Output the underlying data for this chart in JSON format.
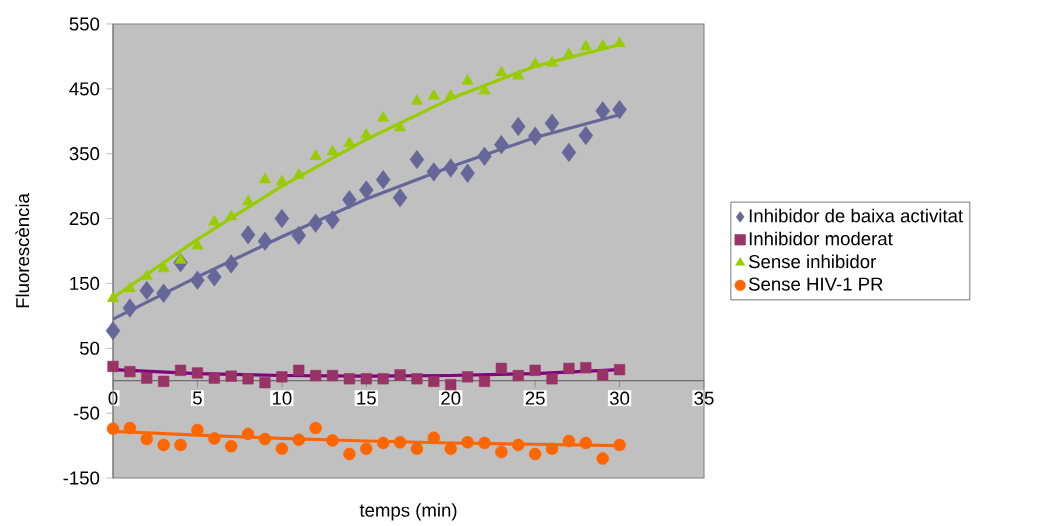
{
  "chart_data": {
    "type": "scatter",
    "xlabel": "temps (min)",
    "ylabel": "Fluorescència",
    "xlim": [
      0,
      35
    ],
    "xticks": [
      0,
      5,
      10,
      15,
      20,
      25,
      30,
      35
    ],
    "ylim": [
      -150,
      550
    ],
    "yticks": [
      -150,
      -50,
      50,
      150,
      250,
      350,
      450,
      550
    ],
    "grid": false,
    "legend": "right",
    "series": [
      {
        "type": "line",
        "color": "#666699",
        "marker": "none",
        "x": [
          0,
          5,
          10,
          15,
          20,
          25,
          30
        ],
        "values": [
          95,
          160,
          222,
          280,
          330,
          375,
          410
        ]
      },
      {
        "type": "line",
        "color": "#800080",
        "marker": "none",
        "x": [
          0,
          5,
          10,
          15,
          20,
          25,
          30
        ],
        "values": [
          17,
          11,
          8,
          7,
          8,
          11,
          17
        ]
      },
      {
        "type": "line",
        "color": "#99cc00",
        "marker": "none",
        "x": [
          0,
          5,
          10,
          15,
          20,
          25,
          30
        ],
        "values": [
          128,
          218,
          300,
          372,
          435,
          485,
          518
        ]
      },
      {
        "type": "line",
        "color": "#ff6600",
        "marker": "none",
        "x": [
          0,
          5,
          10,
          15,
          20,
          25,
          30
        ],
        "values": [
          -78,
          -84,
          -89,
          -93,
          -96,
          -98,
          -100
        ]
      },
      {
        "name": "Inhibidor de baixa activitat",
        "color": "#666699",
        "marker": "diamond",
        "x": [
          0,
          1,
          2,
          3,
          4,
          5,
          6,
          7,
          8,
          9,
          10,
          11,
          12,
          13,
          14,
          15,
          16,
          17,
          18,
          19,
          20,
          21,
          22,
          23,
          24,
          25,
          26,
          27,
          28,
          29,
          30
        ],
        "values": [
          77,
          112,
          139,
          135,
          182,
          155,
          160,
          180,
          225,
          215,
          250,
          224,
          243,
          248,
          279,
          294,
          310,
          282,
          341,
          322,
          328,
          320,
          346,
          364,
          392,
          377,
          397,
          352,
          378,
          416,
          418
        ]
      },
      {
        "name": "Inhibidor moderat",
        "color": "#993366",
        "marker": "square",
        "x": [
          0,
          1,
          2,
          3,
          4,
          5,
          6,
          7,
          8,
          9,
          10,
          11,
          12,
          13,
          14,
          15,
          16,
          17,
          18,
          19,
          20,
          21,
          22,
          23,
          24,
          25,
          26,
          27,
          28,
          29,
          30
        ],
        "values": [
          22,
          14,
          4,
          -1,
          16,
          12,
          4,
          7,
          3,
          -3,
          6,
          16,
          8,
          8,
          3,
          3,
          3,
          9,
          3,
          -1,
          -6,
          6,
          -1,
          19,
          8,
          16,
          3,
          19,
          20,
          9,
          17
        ]
      },
      {
        "name": "Sense inhibidor",
        "color": "#99cc00",
        "marker": "triangle",
        "x": [
          0,
          1,
          2,
          3,
          4,
          5,
          6,
          7,
          8,
          9,
          10,
          11,
          12,
          13,
          14,
          15,
          16,
          17,
          18,
          19,
          20,
          21,
          22,
          23,
          24,
          25,
          26,
          27,
          28,
          29,
          30
        ],
        "values": [
          127,
          142,
          161,
          173,
          186,
          208,
          245,
          253,
          276,
          310,
          307,
          317,
          346,
          353,
          366,
          379,
          405,
          390,
          431,
          439,
          439,
          462,
          447,
          475,
          470,
          488,
          490,
          503,
          515,
          516,
          520
        ]
      },
      {
        "name": "Sense HIV-1 PR",
        "color": "#ff6600",
        "marker": "circle",
        "x": [
          0,
          1,
          2,
          3,
          4,
          5,
          6,
          7,
          8,
          9,
          10,
          11,
          12,
          13,
          14,
          15,
          16,
          17,
          18,
          19,
          20,
          21,
          22,
          23,
          24,
          25,
          26,
          27,
          28,
          29,
          30
        ],
        "values": [
          -74,
          -73,
          -90,
          -99,
          -99,
          -76,
          -89,
          -101,
          -82,
          -90,
          -105,
          -91,
          -73,
          -92,
          -113,
          -105,
          -96,
          -95,
          -105,
          -88,
          -105,
          -95,
          -96,
          -110,
          -99,
          -113,
          -105,
          -93,
          -96,
          -120,
          -99
        ]
      }
    ]
  }
}
